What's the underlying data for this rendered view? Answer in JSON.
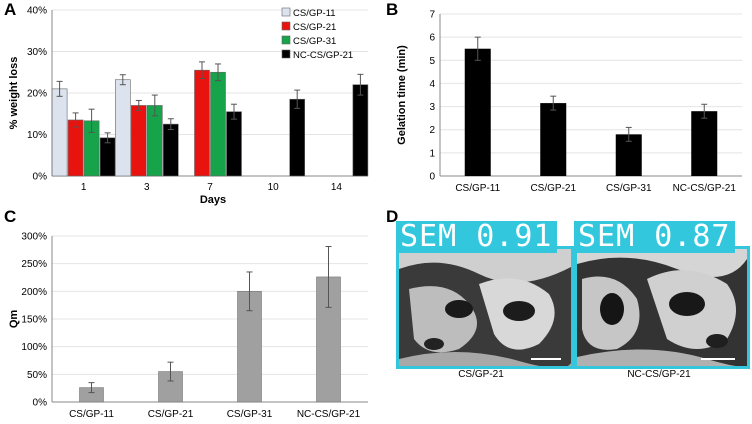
{
  "panels": {
    "a": {
      "letter": "A"
    },
    "b": {
      "letter": "B"
    },
    "c": {
      "letter": "C"
    },
    "d": {
      "letter": "D"
    }
  },
  "chart_data": [
    {
      "id": "A",
      "type": "bar",
      "categories": [
        "1",
        "3",
        "7",
        "10",
        "14"
      ],
      "xlabel": "Days",
      "ylabel": "% weight loss",
      "ylim": [
        0,
        40
      ],
      "yticks": [
        "0%",
        "10%",
        "20%",
        "30%",
        "40%"
      ],
      "legend_position": "top-right",
      "series": [
        {
          "name": "CS/GP-11",
          "color": "#dce3ee",
          "values": [
            21,
            23.2,
            null,
            null,
            null
          ],
          "errors": [
            1.8,
            1.2,
            null,
            null,
            null
          ]
        },
        {
          "name": "CS/GP-21",
          "color": "#e8130f",
          "values": [
            13.5,
            17,
            25.5,
            null,
            null
          ],
          "errors": [
            1.7,
            1.2,
            2.0,
            null,
            null
          ]
        },
        {
          "name": "CS/GP-31",
          "color": "#16a34a",
          "values": [
            13.3,
            17,
            25,
            null,
            null
          ],
          "errors": [
            2.8,
            2.5,
            2.0,
            null,
            null
          ]
        },
        {
          "name": "NC-CS/GP-21",
          "color": "#000000",
          "values": [
            9.2,
            12.5,
            15.5,
            18.5,
            22
          ],
          "errors": [
            1.2,
            1.3,
            1.8,
            2.2,
            2.5
          ]
        }
      ]
    },
    {
      "id": "B",
      "type": "bar",
      "categories": [
        "CS/GP-11",
        "CS/GP-21",
        "CS/GP-31",
        "NC-CS/GP-21"
      ],
      "values": [
        5.5,
        3.15,
        1.8,
        2.8
      ],
      "errors": [
        0.5,
        0.3,
        0.3,
        0.3
      ],
      "color": "#000000",
      "ylabel": "Gelation time (min)",
      "ylim": [
        0,
        7
      ],
      "yticks": [
        "0",
        "1",
        "2",
        "3",
        "4",
        "5",
        "6",
        "7"
      ]
    },
    {
      "id": "C",
      "type": "bar",
      "categories": [
        "CS/GP-11",
        "CS/GP-21",
        "CS/GP-31",
        "NC-CS/GP-21"
      ],
      "values": [
        26,
        55,
        200,
        226
      ],
      "errors": [
        9,
        17,
        35,
        55
      ],
      "color": "#a0a0a0",
      "ylabel": "Qm",
      "ylim": [
        0,
        300
      ],
      "yticks": [
        "0%",
        "50%",
        "100%",
        "150%",
        "200%",
        "250%",
        "300%"
      ]
    }
  ],
  "sem": [
    {
      "score": "SEM 0.91",
      "caption": "CS/GP-21"
    },
    {
      "score": "SEM 0.87",
      "caption": "NC-CS/GP-21"
    }
  ]
}
